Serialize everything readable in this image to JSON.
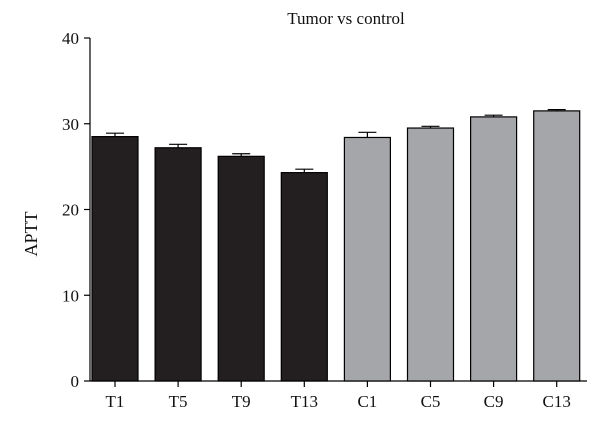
{
  "chart_data": {
    "type": "bar",
    "title": "Tumor vs control",
    "xlabel": "",
    "ylabel": "APTT",
    "ylim": [
      0,
      40
    ],
    "yticks": [
      0,
      10,
      20,
      30,
      40
    ],
    "categories": [
      "T1",
      "T5",
      "T9",
      "T13",
      "C1",
      "C5",
      "C9",
      "C13"
    ],
    "values": [
      28.5,
      27.2,
      26.2,
      24.3,
      28.4,
      29.5,
      30.8,
      31.5
    ],
    "errors": [
      0.4,
      0.4,
      0.3,
      0.4,
      0.6,
      0.2,
      0.2,
      0.15
    ],
    "bar_colors": [
      "#231f20",
      "#231f20",
      "#231f20",
      "#231f20",
      "#a5a6a9",
      "#a5a6a9",
      "#a5a6a9",
      "#a5a6a9"
    ],
    "grid": false,
    "legend": "none"
  }
}
